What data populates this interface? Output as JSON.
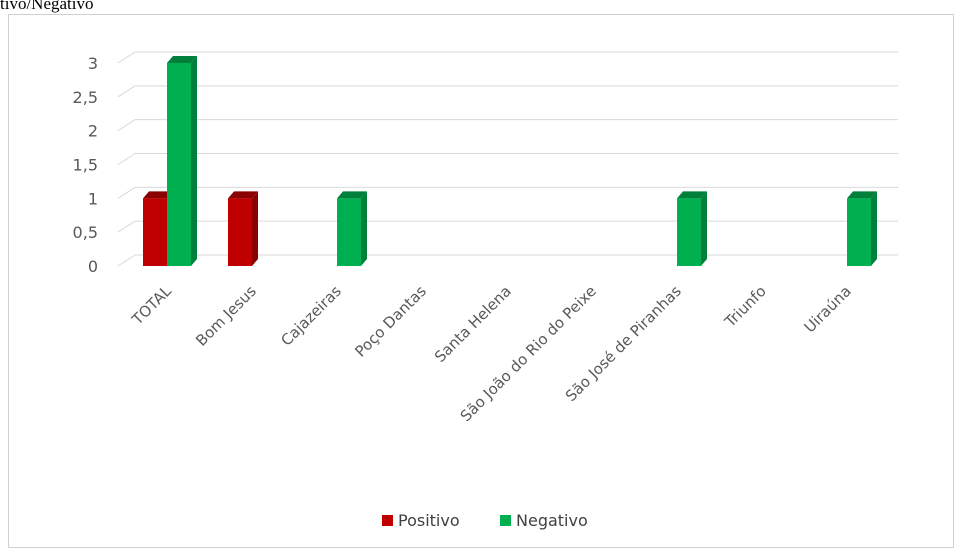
{
  "caption": "tivo/Negativo",
  "chart_data": {
    "type": "bar",
    "title": "",
    "xlabel": "",
    "ylabel": "",
    "ylim": [
      0,
      3
    ],
    "yticks": [
      "0",
      "0,5",
      "1",
      "1,5",
      "2",
      "2,5",
      "3"
    ],
    "grid": true,
    "legend_position": "bottom",
    "categories": [
      "TOTAL",
      "Bom Jesus",
      "Cajazeiras",
      "Poço Dantas",
      "Santa Helena",
      "São João do Rio do Peixe",
      "São José de Piranhas",
      "Triunfo",
      "Uiraúna"
    ],
    "series": [
      {
        "name": "Positivo",
        "color": "#c00000",
        "side_color": "#8b0000",
        "values": [
          1,
          1,
          0,
          0,
          0,
          0,
          0,
          0,
          0
        ]
      },
      {
        "name": "Negativo",
        "color": "#00b050",
        "side_color": "#00803a",
        "values": [
          3,
          0,
          1,
          0,
          0,
          0,
          1,
          0,
          1
        ]
      }
    ]
  }
}
